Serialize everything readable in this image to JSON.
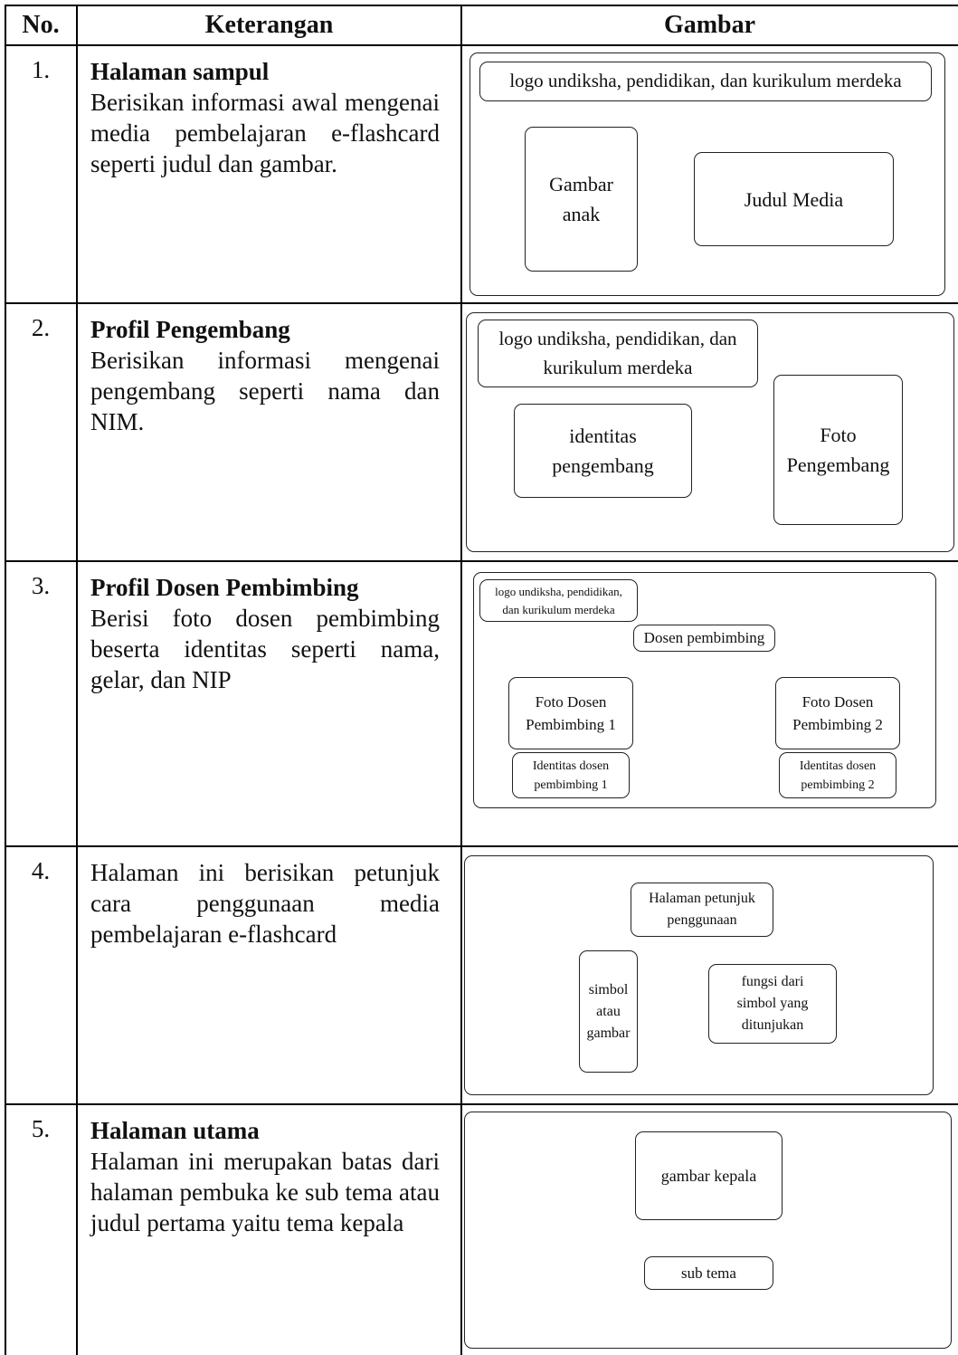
{
  "table": {
    "headers": [
      "No.",
      "Keterangan",
      "Gambar"
    ],
    "rows": [
      {
        "no": "1.",
        "title": "Halaman sampul",
        "description": "Berisikan informasi awal mengenai media pembelajaran e-flashcard seperti judul dan gambar.",
        "boxes": [
          "logo undiksha, pendidikan, dan kurikulum merdeka",
          "Gambar anak",
          "Judul Media"
        ]
      },
      {
        "no": "2.",
        "title": "Profil Pengembang",
        "description": "Berisikan informasi mengenai pengembang seperti nama dan NIM.",
        "boxes": [
          "logo undiksha, pendidikan, dan kurikulum merdeka",
          "identitas pengembang",
          "Foto Pengembang"
        ]
      },
      {
        "no": "3.",
        "title": "Profil Dosen Pembimbing",
        "description": "Berisi foto dosen pembimbing beserta identitas seperti nama, gelar, dan NIP",
        "boxes": [
          "logo undiksha, pendidikan, dan kurikulum merdeka",
          "Dosen pembimbing",
          "Foto Dosen Pembimbing 1",
          "Identitas dosen pembimbing 1",
          "Foto Dosen Pembimbing 2",
          "Identitas dosen pembimbing 2"
        ]
      },
      {
        "no": "4.",
        "description": "Halaman ini berisikan petunjuk cara penggunaan media pembelajaran e-flashcard",
        "boxes": [
          "Halaman petunjuk penggunaan",
          "simbol atau gambar",
          "fungsi dari simbol yang ditunjukan"
        ]
      },
      {
        "no": "5.",
        "title": "Halaman utama",
        "description": "Halaman ini merupakan batas dari halaman pembuka ke sub tema atau judul pertama yaitu tema kepala",
        "boxes": [
          "gambar kepala",
          "sub tema"
        ]
      }
    ]
  }
}
